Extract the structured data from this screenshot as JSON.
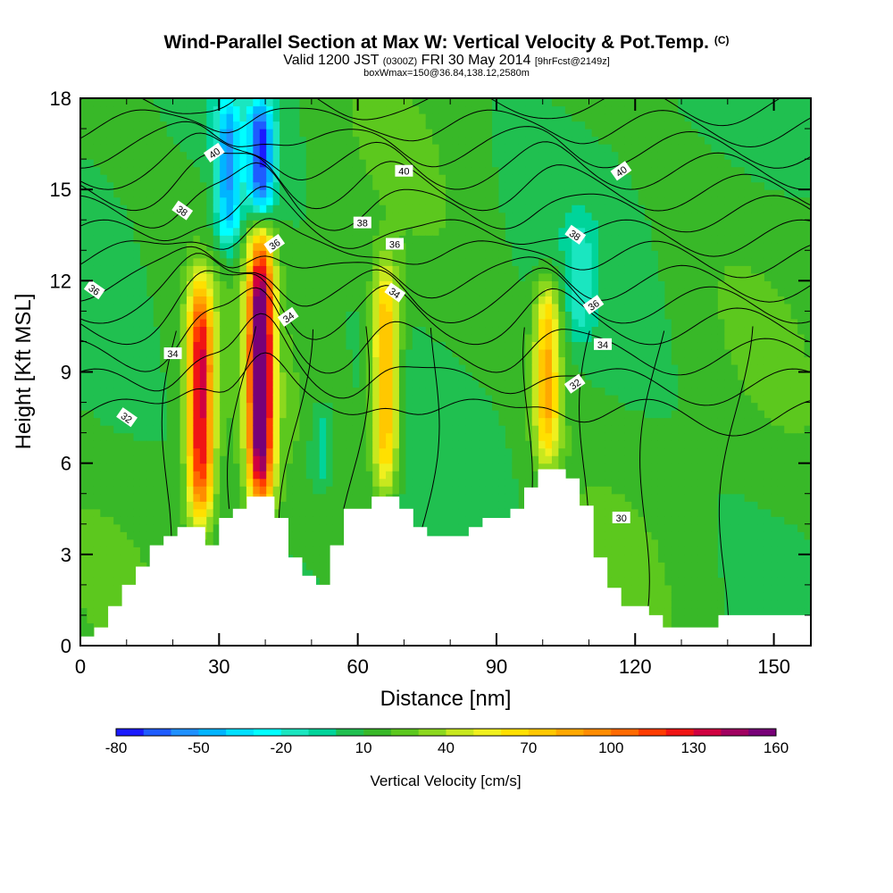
{
  "title": {
    "main": "Wind-Parallel Section at Max W: Vertical Velocity & Pot.Temp.",
    "main_mark": "(C)",
    "valid_prefix": "Valid 1200 JST",
    "valid_utc": "(0300Z)",
    "valid_date": "FRI 30 May 2014",
    "valid_fcst": "[9hrFcst@2149z]",
    "box": "boxWmax=150@36.84,138.12,2580m"
  },
  "chart_data": {
    "type": "heatmap",
    "xlabel": "Distance [nm]",
    "ylabel": "Height [Kft MSL]",
    "xlim": [
      0,
      158
    ],
    "ylim": [
      0,
      18
    ],
    "x_ticks": [
      "0",
      "30",
      "60",
      "90",
      "120",
      "150"
    ],
    "y_ticks": [
      "0",
      "3",
      "6",
      "9",
      "12",
      "15",
      "18"
    ],
    "colorbar": {
      "title": "Vertical Velocity [cm/s]",
      "tick_labels": [
        "-80",
        "-50",
        "-20",
        "10",
        "40",
        "70",
        "100",
        "130",
        "160"
      ],
      "levels": [
        -80,
        -70,
        -60,
        -50,
        -40,
        -30,
        -20,
        -10,
        0,
        10,
        20,
        30,
        40,
        50,
        60,
        70,
        80,
        90,
        100,
        110,
        120,
        130,
        140,
        150,
        160
      ],
      "colors": [
        "#1a1aff",
        "#1e5cff",
        "#1e90ff",
        "#00b4ff",
        "#00e0ff",
        "#00ffff",
        "#1ae6c0",
        "#00d49a",
        "#20c050",
        "#38b828",
        "#5cc81e",
        "#8cd81e",
        "#c8e81e",
        "#f0f01e",
        "#ffe000",
        "#ffc800",
        "#ffa800",
        "#ff8c00",
        "#ff6a00",
        "#ff3c00",
        "#f01414",
        "#d00040",
        "#a00060",
        "#780078"
      ]
    },
    "updrafts": [
      {
        "x": 26,
        "z_bottom": 4,
        "z_top": 12,
        "peak_w": 120
      },
      {
        "x": 39,
        "z_bottom": 4.5,
        "z_top": 13.5,
        "peak_w": 160
      },
      {
        "x": 66,
        "z_bottom": 5,
        "z_top": 12.5,
        "peak_w": 75
      },
      {
        "x": 101,
        "z_bottom": 6,
        "z_top": 12,
        "peak_w": 70
      }
    ],
    "downdrafts": [
      {
        "x": 32,
        "z_bottom": 13,
        "z_top": 18,
        "peak_w": -60
      },
      {
        "x": 39,
        "z_bottom": 14,
        "z_top": 18,
        "peak_w": -80
      },
      {
        "x": 52,
        "z_bottom": 5,
        "z_top": 8,
        "peak_w": -20
      },
      {
        "x": 108,
        "z_bottom": 10,
        "z_top": 14,
        "peak_w": -20
      }
    ],
    "terrain": {
      "x": [
        0,
        3,
        6,
        9,
        12,
        15,
        18,
        21,
        24,
        27,
        30,
        33,
        36,
        39,
        42,
        45,
        48,
        51,
        54,
        57,
        60,
        63,
        66,
        69,
        72,
        75,
        78,
        81,
        84,
        87,
        90,
        93,
        96,
        99,
        102,
        105,
        108,
        111,
        114,
        117,
        120,
        123,
        126,
        129,
        132,
        135,
        138,
        141,
        144,
        147,
        150,
        153,
        156,
        158
      ],
      "z": [
        0.3,
        0.6,
        1.3,
        2.0,
        2.6,
        3.3,
        3.6,
        3.9,
        3.9,
        3.3,
        4.2,
        4.5,
        4.9,
        4.9,
        4.2,
        2.9,
        2.3,
        2.0,
        3.3,
        4.5,
        4.5,
        4.9,
        4.9,
        4.5,
        3.9,
        3.6,
        3.6,
        3.6,
        3.9,
        4.2,
        4.2,
        4.5,
        5.2,
        5.8,
        5.8,
        5.5,
        4.6,
        2.9,
        1.9,
        1.3,
        1.3,
        1.0,
        0.6,
        0.6,
        0.6,
        0.6,
        1.0,
        1.0,
        1.0,
        1.0,
        1.0,
        1.0,
        1.0,
        1.0
      ]
    },
    "theta_contours": [
      {
        "value": 30,
        "label": "30",
        "label_x": 117,
        "label_z": 4.2
      },
      {
        "value": 32,
        "label": "32",
        "label_x": 10,
        "label_z": 7.5
      },
      {
        "value": 32,
        "label": "32",
        "label_x": 107,
        "label_z": 8.6
      },
      {
        "value": 34,
        "label": "34",
        "label_x": 20,
        "label_z": 9.6
      },
      {
        "value": 34,
        "label": "34",
        "label_x": 45,
        "label_z": 10.8
      },
      {
        "value": 34,
        "label": "34",
        "label_x": 68,
        "label_z": 11.6
      },
      {
        "value": 34,
        "label": "34",
        "label_x": 113,
        "label_z": 9.9
      },
      {
        "value": 36,
        "label": "36",
        "label_x": 3,
        "label_z": 11.7
      },
      {
        "value": 36,
        "label": "36",
        "label_x": 42,
        "label_z": 13.2
      },
      {
        "value": 36,
        "label": "36",
        "label_x": 68,
        "label_z": 13.2
      },
      {
        "value": 36,
        "label": "36",
        "label_x": 111,
        "label_z": 11.2
      },
      {
        "value": 38,
        "label": "38",
        "label_x": 22,
        "label_z": 14.3
      },
      {
        "value": 38,
        "label": "38",
        "label_x": 61,
        "label_z": 13.9
      },
      {
        "value": 38,
        "label": "38",
        "label_x": 107,
        "label_z": 13.5
      },
      {
        "value": 40,
        "label": "40",
        "label_x": 29,
        "label_z": 16.2
      },
      {
        "value": 40,
        "label": "40",
        "label_x": 70,
        "label_z": 15.6
      },
      {
        "value": 40,
        "label": "40",
        "label_x": 117,
        "label_z": 15.6
      }
    ]
  }
}
